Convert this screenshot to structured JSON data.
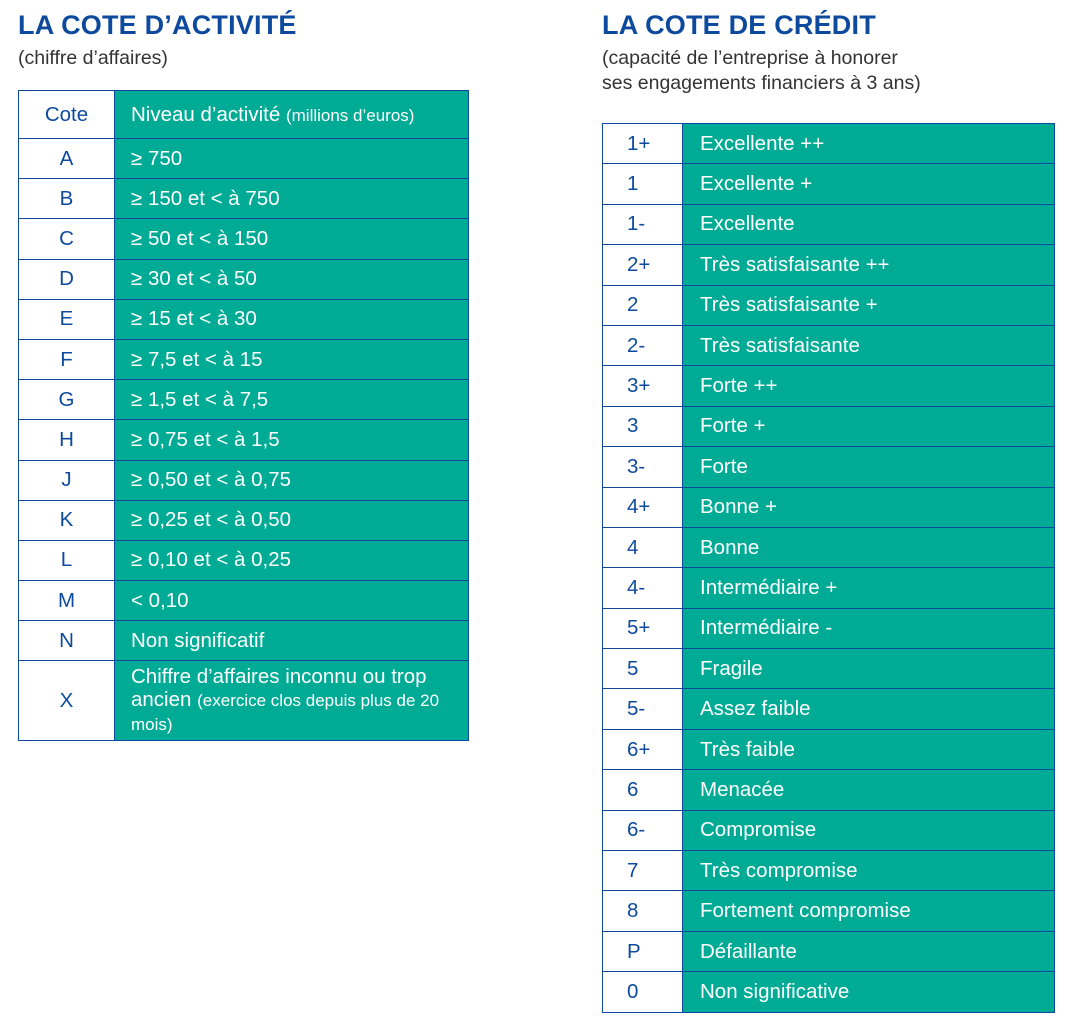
{
  "activity": {
    "title": "LA COTE D’ACTIVITÉ",
    "subtitle": "(chiffre d’affaires)",
    "header": {
      "key": "Cote",
      "value": "Niveau d’activité",
      "value_note": "(millions d’euros)"
    },
    "rows": [
      {
        "key": "A",
        "value": "≥ 750"
      },
      {
        "key": "B",
        "value": "≥ 150 et < à 750"
      },
      {
        "key": "C",
        "value": "≥ 50 et < à 150"
      },
      {
        "key": "D",
        "value": "≥ 30 et < à 50"
      },
      {
        "key": "E",
        "value": "≥ 15 et < à 30"
      },
      {
        "key": "F",
        "value": "≥ 7,5 et < à 15"
      },
      {
        "key": "G",
        "value": "≥ 1,5 et < à 7,5"
      },
      {
        "key": "H",
        "value": "≥ 0,75 et < à 1,5"
      },
      {
        "key": "J",
        "value": "≥ 0,50 et < à 0,75"
      },
      {
        "key": "K",
        "value": "≥ 0,25 et < à 0,50"
      },
      {
        "key": "L",
        "value": "≥ 0,10 et < à 0,25"
      },
      {
        "key": "M",
        "value": "< 0,10"
      },
      {
        "key": "N",
        "value": "Non significatif"
      },
      {
        "key": "X",
        "value": "Chiffre d’affaires inconnu ou trop ancien",
        "note": "(exercice clos depuis plus de 20 mois)"
      }
    ]
  },
  "credit": {
    "title": "LA COTE DE CRÉDIT",
    "subtitle_line1": "(capacité de l’entreprise à honorer",
    "subtitle_line2": "ses engagements financiers à 3 ans)",
    "rows": [
      {
        "key": "1+",
        "value": "Excellente ++"
      },
      {
        "key": "1",
        "value": "Excellente +"
      },
      {
        "key": "1-",
        "value": "Excellente"
      },
      {
        "key": "2+",
        "value": "Très satisfaisante ++"
      },
      {
        "key": "2",
        "value": "Très satisfaisante +"
      },
      {
        "key": "2-",
        "value": "Très satisfaisante"
      },
      {
        "key": "3+",
        "value": "Forte ++"
      },
      {
        "key": "3",
        "value": "Forte +"
      },
      {
        "key": "3-",
        "value": "Forte"
      },
      {
        "key": "4+",
        "value": "Bonne +"
      },
      {
        "key": "4",
        "value": "Bonne"
      },
      {
        "key": "4-",
        "value": "Intermédiaire +"
      },
      {
        "key": "5+",
        "value": "Intermédiaire -"
      },
      {
        "key": "5",
        "value": "Fragile"
      },
      {
        "key": "5-",
        "value": "Assez faible"
      },
      {
        "key": "6+",
        "value": "Très faible"
      },
      {
        "key": "6",
        "value": "Menacée"
      },
      {
        "key": "6-",
        "value": "Compromise"
      },
      {
        "key": "7",
        "value": "Très compromise"
      },
      {
        "key": "8",
        "value": "Fortement compromise"
      },
      {
        "key": "P",
        "value": "Défaillante"
      },
      {
        "key": "0",
        "value": "Non significative"
      }
    ]
  },
  "colors": {
    "blue": "#0d4a9e",
    "teal": "#00ab96"
  }
}
